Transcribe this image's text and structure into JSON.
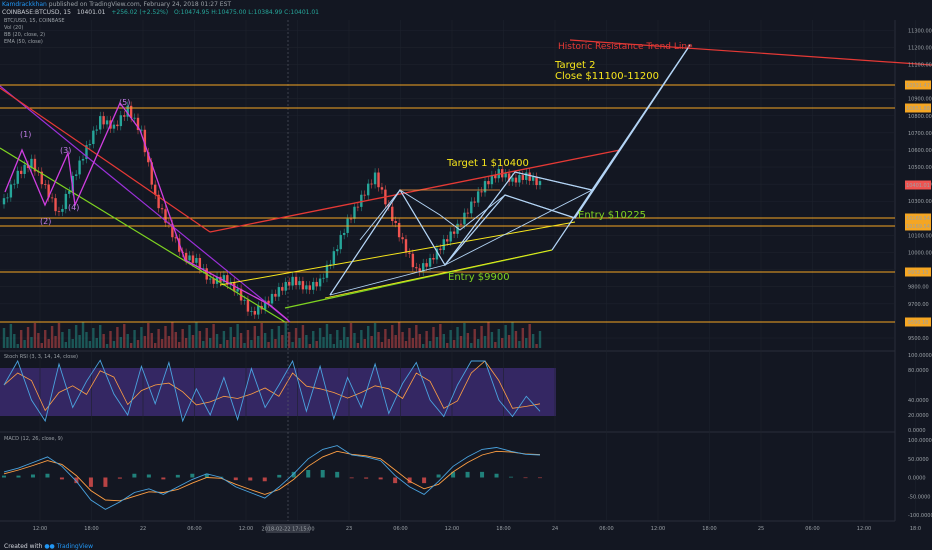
{
  "header": {
    "author": "Kamdrackkhan",
    "published": "published on TradingView.com, February 24, 2018 01:27 EST",
    "symbol": "COINBASE:BTCUSD, 15",
    "price": "10401.01",
    "change": "+256.02 (+2.52%)",
    "ohlc": "O:10474.95 H:10475.00 L:10384.99 C:10401.01"
  },
  "indicators": [
    "BTC/USD, 15, COINBASE",
    "Vol (20)",
    "BB (20, close, 2)",
    "EMA (50, close)"
  ],
  "annotations": {
    "resistance": "Historic Resistance Trend Line",
    "target2_line1": "Target 2",
    "target2_line2": "Close $11100-11200",
    "target1": "Target 1 $10400",
    "entry1": "Entry $10225",
    "entry2": "Entry $9900"
  },
  "wave_labels": [
    "(1)",
    "(2)",
    "(3)",
    "(4)",
    "(5)"
  ],
  "price_tags": [
    "10931.47",
    "10851.88",
    "10401.01",
    "10169.54",
    "10169.54",
    "9932.13",
    "9590.18"
  ],
  "stoch_title": "Stoch RSI (3, 3, 14, 14, close)",
  "macd_title": "MACD (12, 26, close, 9)",
  "stoch_ticks": [
    "100.0000",
    "80.0000",
    "40.0000",
    "20.0000",
    "0.0000"
  ],
  "macd_ticks": [
    "100.0000",
    "50.0000",
    "0.0000",
    "-50.0000",
    "-100.0000"
  ],
  "time_labels": [
    "12:00",
    "18:00",
    "22",
    "06:00",
    "12:00",
    "18:00",
    "23",
    "06:00",
    "12:00",
    "18:00",
    "24",
    "06:00",
    "12:00",
    "18:00",
    "25",
    "06:00",
    "12:00",
    "18:0"
  ],
  "crosshair_label": "2018-02-22 17:15:00",
  "footer": {
    "prefix": "Created with",
    "brand": "TradingView"
  },
  "chart_data": {
    "type": "line",
    "price_axis": {
      "ticks": [
        11300,
        11200,
        11100,
        10900,
        10800,
        10700,
        10600,
        10500,
        10400,
        10300,
        10100,
        10000,
        9900,
        9800,
        9700,
        9500
      ],
      "range": [
        9430,
        11360
      ]
    },
    "price": [
      10300,
      10460,
      10530,
      10380,
      10220,
      10430,
      10610,
      10780,
      10730,
      10840,
      10700,
      10320,
      10150,
      9980,
      9950,
      9830,
      9850,
      9770,
      9640,
      9700,
      9780,
      9840,
      9790,
      9830,
      9990,
      10180,
      10320,
      10450,
      10250,
      10060,
      9890,
      9950,
      10060,
      10150,
      10280,
      10400,
      10470,
      10420,
      10450,
      10400
    ],
    "stoch_rsi_k": [
      60,
      92,
      40,
      12,
      88,
      30,
      65,
      93,
      48,
      20,
      85,
      35,
      90,
      12,
      55,
      20,
      70,
      14,
      82,
      30,
      60,
      92,
      25,
      85,
      15,
      70,
      30,
      88,
      22,
      62,
      90,
      40,
      18,
      60,
      92,
      92,
      40,
      18,
      45,
      25
    ],
    "macd": [
      15,
      25,
      40,
      55,
      30,
      -10,
      -60,
      -85,
      -65,
      -40,
      -30,
      -45,
      -25,
      -5,
      10,
      0,
      -25,
      -40,
      -55,
      -25,
      10,
      50,
      75,
      85,
      60,
      55,
      45,
      5,
      -25,
      -45,
      -10,
      30,
      55,
      75,
      80,
      70,
      62,
      60
    ],
    "macd_signal": [
      10,
      20,
      32,
      45,
      35,
      5,
      -35,
      -60,
      -62,
      -50,
      -38,
      -40,
      -32,
      -15,
      0,
      -2,
      -18,
      -32,
      -45,
      -32,
      -5,
      30,
      55,
      70,
      62,
      58,
      50,
      20,
      -10,
      -30,
      -18,
      15,
      40,
      60,
      70,
      68,
      63,
      61
    ]
  }
}
